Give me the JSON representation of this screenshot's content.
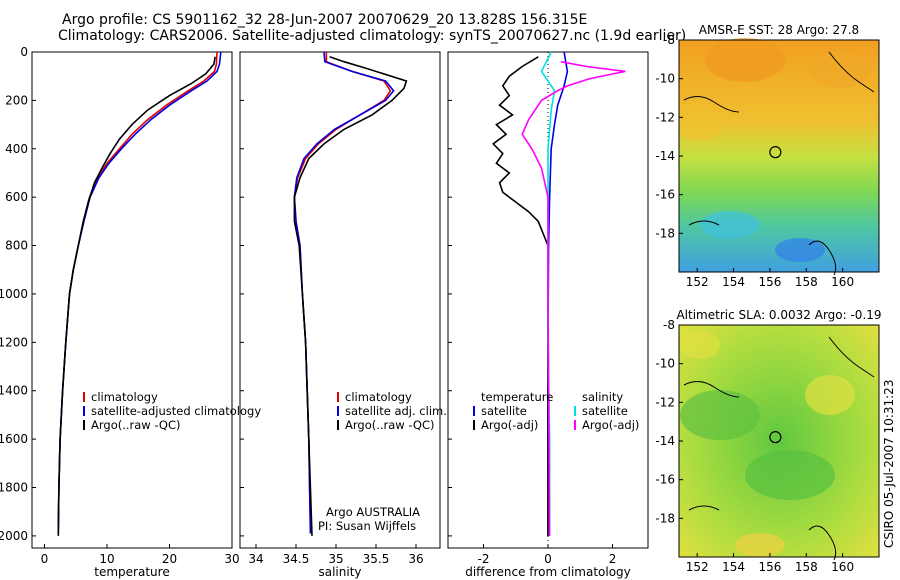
{
  "header": {
    "line1": "Argo profile: CS 5901162_32 28-Jun-2007 20070629_20 13.828S 156.315E",
    "line2": "Climatology: CARS2006. Satellite-adjusted climatology: synTS_20070627.nc (1.9d earlier)"
  },
  "side_label": "CSIRO 05-Jul-2007 10:31:23",
  "colors": {
    "climatology": "#e00000",
    "satellite": "#0000e0",
    "argo": "#000000",
    "salinity_sat": "#00e0e0",
    "salinity_argo": "#ff00ff"
  },
  "chart_data": [
    {
      "id": "temperature",
      "type": "line",
      "xlabel": "temperature",
      "ylabel": "",
      "xlim": [
        -2,
        30
      ],
      "ylim": [
        2050,
        0
      ],
      "xticks": [
        "0",
        "10",
        "20",
        "30"
      ],
      "yticks": [
        "0",
        "200",
        "400",
        "600",
        "800",
        "1000",
        "1200",
        "1400",
        "1600",
        "1800",
        "2000"
      ],
      "legend": [
        "climatology",
        "satellite-adjusted climatology",
        "Argo(..raw -QC)"
      ],
      "series": [
        {
          "name": "climatology",
          "color": "#e00000",
          "x": [
            27.6,
            27.5,
            27.2,
            25.5,
            23,
            19.5,
            16.5,
            14,
            12,
            10,
            8.5,
            7.2,
            6.2,
            5.4,
            4.6,
            4,
            3.4,
            2.9,
            2.5,
            2.3,
            2.2
          ],
          "y": [
            0,
            50,
            80,
            120,
            160,
            220,
            280,
            340,
            400,
            460,
            520,
            600,
            700,
            800,
            900,
            1000,
            1200,
            1400,
            1600,
            1800,
            1950
          ]
        },
        {
          "name": "satellite-adjusted climatology",
          "color": "#0000e0",
          "x": [
            28.2,
            28,
            27.6,
            26,
            23.5,
            20,
            17,
            14.5,
            12.3,
            10.3,
            8.7,
            7.3,
            6.3,
            5.4,
            4.6,
            4,
            3.4,
            2.9,
            2.5,
            2.3,
            2.2
          ],
          "y": [
            0,
            50,
            80,
            120,
            160,
            220,
            280,
            340,
            400,
            460,
            520,
            600,
            700,
            800,
            900,
            1000,
            1200,
            1400,
            1600,
            1800,
            1990
          ]
        },
        {
          "name": "Argo(..raw -QC)",
          "color": "#000000",
          "x": [
            27.3,
            27.1,
            25.8,
            23.5,
            20,
            16.5,
            14,
            12,
            10.5,
            9.2,
            8,
            7,
            6.2,
            5.4,
            4.6,
            4,
            3.4,
            2.9,
            2.5,
            2.3,
            2.2
          ],
          "y": [
            20,
            50,
            90,
            130,
            180,
            240,
            300,
            360,
            420,
            480,
            540,
            620,
            700,
            800,
            900,
            1000,
            1200,
            1400,
            1600,
            1800,
            2000
          ]
        }
      ]
    },
    {
      "id": "salinity",
      "type": "line",
      "xlabel": "salinity",
      "xlim": [
        33.8,
        36.3
      ],
      "ylim": [
        2050,
        0
      ],
      "xticks": [
        "34",
        "34.5",
        "35",
        "35.5",
        "36"
      ],
      "legend": [
        "climatology",
        "satellite adj. clim.",
        "Argo(..raw -QC)"
      ],
      "annotation": [
        "Argo AUSTRALIA",
        "PI: Susan Wijffels"
      ],
      "series": [
        {
          "name": "climatology",
          "color": "#e00000",
          "x": [
            34.88,
            34.88,
            35.2,
            35.6,
            35.68,
            35.6,
            35.3,
            35,
            34.78,
            34.62,
            34.52,
            34.48,
            34.5,
            34.55,
            34.58,
            34.62,
            34.64,
            34.66,
            34.67,
            34.68
          ],
          "y": [
            0,
            40,
            80,
            120,
            160,
            200,
            260,
            320,
            380,
            440,
            520,
            600,
            700,
            800,
            1000,
            1200,
            1400,
            1600,
            1800,
            1950
          ]
        },
        {
          "name": "satellite adj. clim.",
          "color": "#0000e0",
          "x": [
            34.85,
            34.86,
            35.2,
            35.62,
            35.72,
            35.62,
            35.3,
            34.98,
            34.76,
            34.6,
            34.51,
            34.48,
            34.5,
            34.55,
            34.58,
            34.62,
            34.64,
            34.66,
            34.67,
            34.68
          ],
          "y": [
            0,
            40,
            80,
            120,
            160,
            200,
            260,
            320,
            380,
            440,
            520,
            600,
            700,
            800,
            1000,
            1200,
            1400,
            1600,
            1800,
            1990
          ]
        },
        {
          "name": "Argo(..raw -QC)",
          "color": "#000000",
          "x": [
            34.92,
            35.1,
            35.4,
            35.88,
            35.85,
            35.7,
            35.45,
            35.1,
            34.85,
            34.66,
            34.55,
            34.48,
            34.48,
            34.54,
            34.58,
            34.62,
            34.64,
            34.66,
            34.68,
            34.7
          ],
          "y": [
            20,
            40,
            70,
            120,
            150,
            200,
            260,
            320,
            380,
            440,
            520,
            600,
            700,
            800,
            1000,
            1200,
            1400,
            1600,
            1800,
            2000
          ]
        }
      ]
    },
    {
      "id": "difference",
      "type": "line",
      "xlabel": "difference from climatology",
      "xlim": [
        -3.1,
        3.1
      ],
      "ylim": [
        2050,
        0
      ],
      "xticks": [
        "-2",
        "0",
        "2"
      ],
      "legend_temperature": {
        "title": "temperature",
        "items": [
          "satellite",
          "Argo(-adj)"
        ]
      },
      "legend_salinity": {
        "title": "salinity",
        "items": [
          "satellite",
          "Argo(-adj)"
        ]
      },
      "series": [
        {
          "name": "temperature satellite",
          "color": "#0000e0",
          "x": [
            0.5,
            0.6,
            0.5,
            0.4,
            0.3,
            0.2,
            0.1,
            0.05,
            0.02,
            0,
            0
          ],
          "y": [
            0,
            80,
            140,
            180,
            220,
            300,
            400,
            600,
            800,
            1200,
            2000
          ]
        },
        {
          "name": "temperature Argo(-adj)",
          "color": "#000000",
          "x": [
            -0.3,
            -0.8,
            -1.2,
            -1.4,
            -1.2,
            -1.5,
            -1.1,
            -1.6,
            -1.3,
            -1.7,
            -1.4,
            -1.6,
            -1.2,
            -1.5,
            -1.4,
            -1.0,
            -0.6,
            -0.3,
            0,
            0
          ],
          "y": [
            20,
            60,
            100,
            140,
            180,
            220,
            260,
            300,
            340,
            380,
            420,
            460,
            500,
            540,
            580,
            620,
            660,
            700,
            800,
            2000
          ]
        },
        {
          "name": "salinity satellite",
          "color": "#00e0e0",
          "x": [
            0.1,
            -0.2,
            0.2,
            0.1,
            0,
            0,
            0,
            0.05,
            0.05
          ],
          "y": [
            0,
            80,
            160,
            240,
            400,
            800,
            1200,
            1600,
            2000
          ]
        },
        {
          "name": "salinity Argo(-adj)",
          "color": "#ff00ff",
          "x": [
            0.4,
            1.2,
            2.4,
            1.3,
            0.6,
            0.3,
            -0.2,
            -0.6,
            -0.8,
            -0.5,
            -0.2,
            0,
            0,
            0.05
          ],
          "y": [
            40,
            60,
            80,
            110,
            140,
            160,
            200,
            280,
            340,
            400,
            480,
            600,
            1000,
            2000
          ]
        }
      ]
    },
    {
      "id": "sst_map",
      "type": "heatmap",
      "title": "AMSR-E SST: 28 Argo: 27.8",
      "xticks": [
        "152",
        "154",
        "156",
        "158",
        "160"
      ],
      "yticks": [
        "-8",
        "-10",
        "-12",
        "-14",
        "-16",
        "-18"
      ],
      "xlim": [
        151,
        162
      ],
      "ylim": [
        -20,
        -8
      ],
      "argo_position": [
        156.3,
        -13.8
      ]
    },
    {
      "id": "sla_map",
      "type": "heatmap",
      "title": "Altimetric SLA: 0.0032 Argo: -0.19",
      "xticks": [
        "152",
        "154",
        "156",
        "158",
        "160"
      ],
      "yticks": [
        "-8",
        "-10",
        "-12",
        "-14",
        "-16",
        "-18"
      ],
      "xlim": [
        151,
        162
      ],
      "ylim": [
        -20,
        -8
      ],
      "argo_position": [
        156.3,
        -13.8
      ]
    }
  ]
}
